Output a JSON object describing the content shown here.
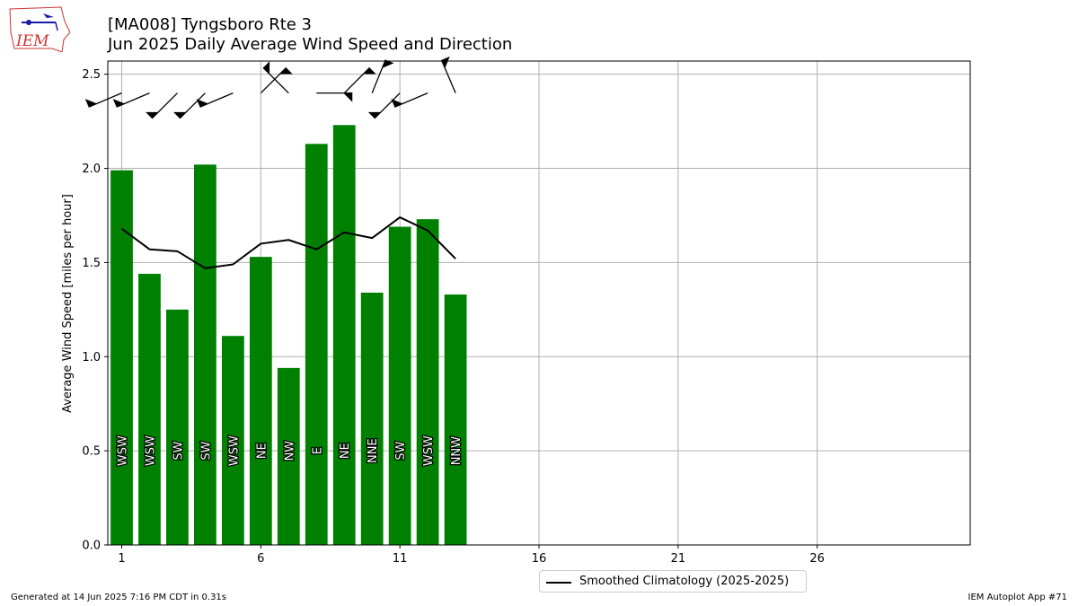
{
  "header": {
    "title_line1": "[MA008] Tyngsboro Rte 3",
    "title_line2": "Jun 2025 Daily Average Wind Speed and Direction",
    "logo_text": "IEM"
  },
  "footer": {
    "generated": "Generated at 14 Jun 2025 7:16 PM CDT in 0.31s",
    "app": "IEM Autoplot App #71"
  },
  "colors": {
    "bar": "#008000",
    "line": "#000000",
    "grid": "#b0b0b0"
  },
  "chart_data": {
    "type": "bar",
    "ylabel": "Average Wind Speed [miles per hour]",
    "xlim": [
      0.5,
      31.5
    ],
    "ylim": [
      0.0,
      2.57
    ],
    "x_ticks": [
      1,
      6,
      11,
      16,
      21,
      26
    ],
    "y_ticks": [
      "0.0",
      "0.5",
      "1.0",
      "1.5",
      "2.0",
      "2.5"
    ],
    "grid": true,
    "legend_placement": "bottom-center",
    "series": [
      {
        "type": "bar",
        "days": [
          1,
          2,
          3,
          4,
          5,
          6,
          7,
          8,
          9,
          10,
          11,
          12,
          13
        ],
        "values": [
          1.99,
          1.44,
          1.25,
          2.02,
          1.11,
          1.53,
          0.94,
          2.13,
          2.23,
          1.34,
          1.69,
          1.73,
          1.33
        ],
        "directions": [
          "WSW",
          "WSW",
          "SW",
          "SW",
          "WSW",
          "NE",
          "NW",
          "E",
          "NE",
          "NNE",
          "SW",
          "WSW",
          "NNW"
        ]
      },
      {
        "name": "Smoothed Climatology (2025-2025)",
        "type": "line",
        "days": [
          1,
          2,
          3,
          4,
          5,
          6,
          7,
          8,
          9,
          10,
          11,
          12,
          13
        ],
        "values": [
          1.68,
          1.57,
          1.56,
          1.47,
          1.49,
          1.6,
          1.62,
          1.57,
          1.66,
          1.63,
          1.74,
          1.67,
          1.52
        ]
      }
    ],
    "wind_barbs": {
      "days": [
        1,
        2,
        3,
        4,
        5,
        6,
        7,
        8,
        9,
        10,
        11,
        12,
        13
      ],
      "direction_degrees": [
        247,
        247,
        225,
        225,
        247,
        45,
        315,
        90,
        45,
        22,
        225,
        247,
        337
      ]
    }
  }
}
